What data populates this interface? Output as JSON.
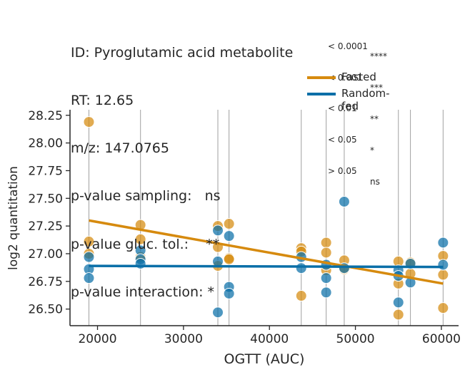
{
  "header": {
    "lines": [
      "ID: Pyroglutamic acid metabolite",
      "RT: 12.65",
      "m/z: 147.0765",
      "p-value sampling:   ns",
      "p-value gluc. tol.:    **",
      "p-value interaction: *"
    ]
  },
  "pvalue_key": [
    {
      "threshold": "< 0.0001",
      "symbol": "****"
    },
    {
      "threshold": "< 0.001",
      "symbol": "***"
    },
    {
      "threshold": "< 0.01",
      "symbol": "**"
    },
    {
      "threshold": "< 0.05",
      "symbol": "*"
    },
    {
      "threshold": "> 0.05",
      "symbol": "ns"
    }
  ],
  "colors": {
    "fasted": "#d68a0e",
    "random_fed": "#0a6fa8",
    "axis": "#262626",
    "grid": "#a0a0a0"
  },
  "chart_data": {
    "type": "scatter",
    "xlabel": "OGTT (AUC)",
    "ylabel": "log2 quantitation",
    "xlim": [
      16800,
      62000
    ],
    "ylim": [
      26.35,
      28.3
    ],
    "xticks": [
      20000,
      30000,
      40000,
      50000,
      60000
    ],
    "xtick_labels": [
      "20000",
      "30000",
      "40000",
      "50000",
      "60000"
    ],
    "yticks": [
      26.5,
      26.75,
      27.0,
      27.25,
      27.5,
      27.75,
      28.0,
      28.25
    ],
    "ytick_labels": [
      "26.50",
      "26.75",
      "27.00",
      "27.25",
      "27.50",
      "27.75",
      "28.00",
      "28.25"
    ],
    "vertical_gridlines_x": [
      19000,
      25000,
      34000,
      35300,
      43700,
      46600,
      48700,
      55000,
      56400,
      60200
    ],
    "legend_position": "top-right",
    "series": [
      {
        "name": "Fasted",
        "color": "#d68a0e",
        "points": [
          [
            19000,
            28.19
          ],
          [
            19000,
            27.11
          ],
          [
            19000,
            27.0
          ],
          [
            25000,
            27.26
          ],
          [
            25000,
            27.13
          ],
          [
            25000,
            26.97
          ],
          [
            34000,
            27.25
          ],
          [
            34000,
            27.06
          ],
          [
            34000,
            26.89
          ],
          [
            35300,
            27.27
          ],
          [
            35300,
            26.96
          ],
          [
            35300,
            26.95
          ],
          [
            43700,
            27.05
          ],
          [
            43700,
            27.02
          ],
          [
            43700,
            26.62
          ],
          [
            46600,
            27.1
          ],
          [
            46600,
            27.01
          ],
          [
            46600,
            26.85
          ],
          [
            48700,
            26.94
          ],
          [
            48700,
            26.86
          ],
          [
            55000,
            26.93
          ],
          [
            55000,
            26.73
          ],
          [
            55000,
            26.45
          ],
          [
            56400,
            26.92
          ],
          [
            56400,
            26.82
          ],
          [
            60200,
            26.98
          ],
          [
            60200,
            26.81
          ],
          [
            60200,
            26.51
          ]
        ],
        "fit": [
          [
            19000,
            27.3
          ],
          [
            60200,
            26.73
          ]
        ]
      },
      {
        "name": "Random-fed",
        "color": "#0a6fa8",
        "points": [
          [
            19000,
            26.97
          ],
          [
            19000,
            26.86
          ],
          [
            19000,
            26.78
          ],
          [
            25000,
            27.03
          ],
          [
            25000,
            26.95
          ],
          [
            25000,
            26.91
          ],
          [
            34000,
            27.21
          ],
          [
            34000,
            26.93
          ],
          [
            34000,
            26.47
          ],
          [
            35300,
            27.16
          ],
          [
            35300,
            26.7
          ],
          [
            35300,
            26.64
          ],
          [
            43700,
            26.97
          ],
          [
            43700,
            26.87
          ],
          [
            46600,
            26.9
          ],
          [
            46600,
            26.78
          ],
          [
            46600,
            26.65
          ],
          [
            48700,
            27.47
          ],
          [
            48700,
            26.87
          ],
          [
            55000,
            26.85
          ],
          [
            55000,
            26.8
          ],
          [
            55000,
            26.56
          ],
          [
            56400,
            26.91
          ],
          [
            56400,
            26.74
          ],
          [
            60200,
            27.1
          ],
          [
            60200,
            26.9
          ]
        ],
        "fit": [
          [
            19000,
            26.89
          ],
          [
            60200,
            26.88
          ]
        ]
      }
    ]
  }
}
